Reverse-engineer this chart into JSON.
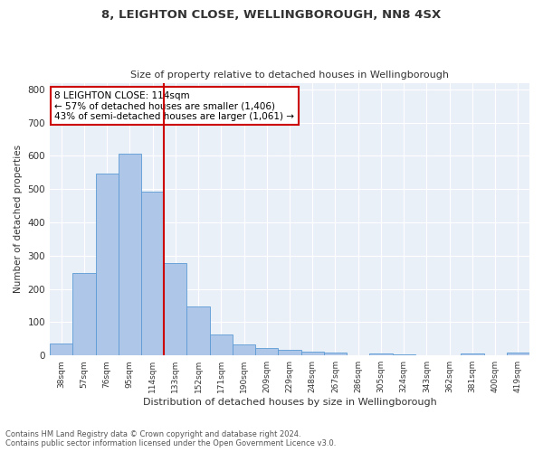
{
  "title1": "8, LEIGHTON CLOSE, WELLINGBOROUGH, NN8 4SX",
  "title2": "Size of property relative to detached houses in Wellingborough",
  "xlabel": "Distribution of detached houses by size in Wellingborough",
  "ylabel": "Number of detached properties",
  "categories": [
    "38sqm",
    "57sqm",
    "76sqm",
    "95sqm",
    "114sqm",
    "133sqm",
    "152sqm",
    "171sqm",
    "190sqm",
    "209sqm",
    "229sqm",
    "248sqm",
    "267sqm",
    "286sqm",
    "305sqm",
    "324sqm",
    "343sqm",
    "362sqm",
    "381sqm",
    "400sqm",
    "419sqm"
  ],
  "values": [
    35,
    248,
    548,
    608,
    493,
    278,
    148,
    62,
    32,
    22,
    17,
    12,
    8,
    0,
    5,
    2,
    0,
    0,
    7,
    0,
    8
  ],
  "bar_color": "#aec6e8",
  "bar_edgecolor": "#5b9bd5",
  "vline_index": 4,
  "vline_color": "#cc0000",
  "annotation_title": "8 LEIGHTON CLOSE: 114sqm",
  "annotation_line1": "← 57% of detached houses are smaller (1,406)",
  "annotation_line2": "43% of semi-detached houses are larger (1,061) →",
  "annotation_box_color": "#cc0000",
  "footnote1": "Contains HM Land Registry data © Crown copyright and database right 2024.",
  "footnote2": "Contains public sector information licensed under the Open Government Licence v3.0.",
  "bg_color": "#eaf0f8",
  "ylim": [
    0,
    820
  ],
  "yticks": [
    0,
    100,
    200,
    300,
    400,
    500,
    600,
    700,
    800
  ]
}
